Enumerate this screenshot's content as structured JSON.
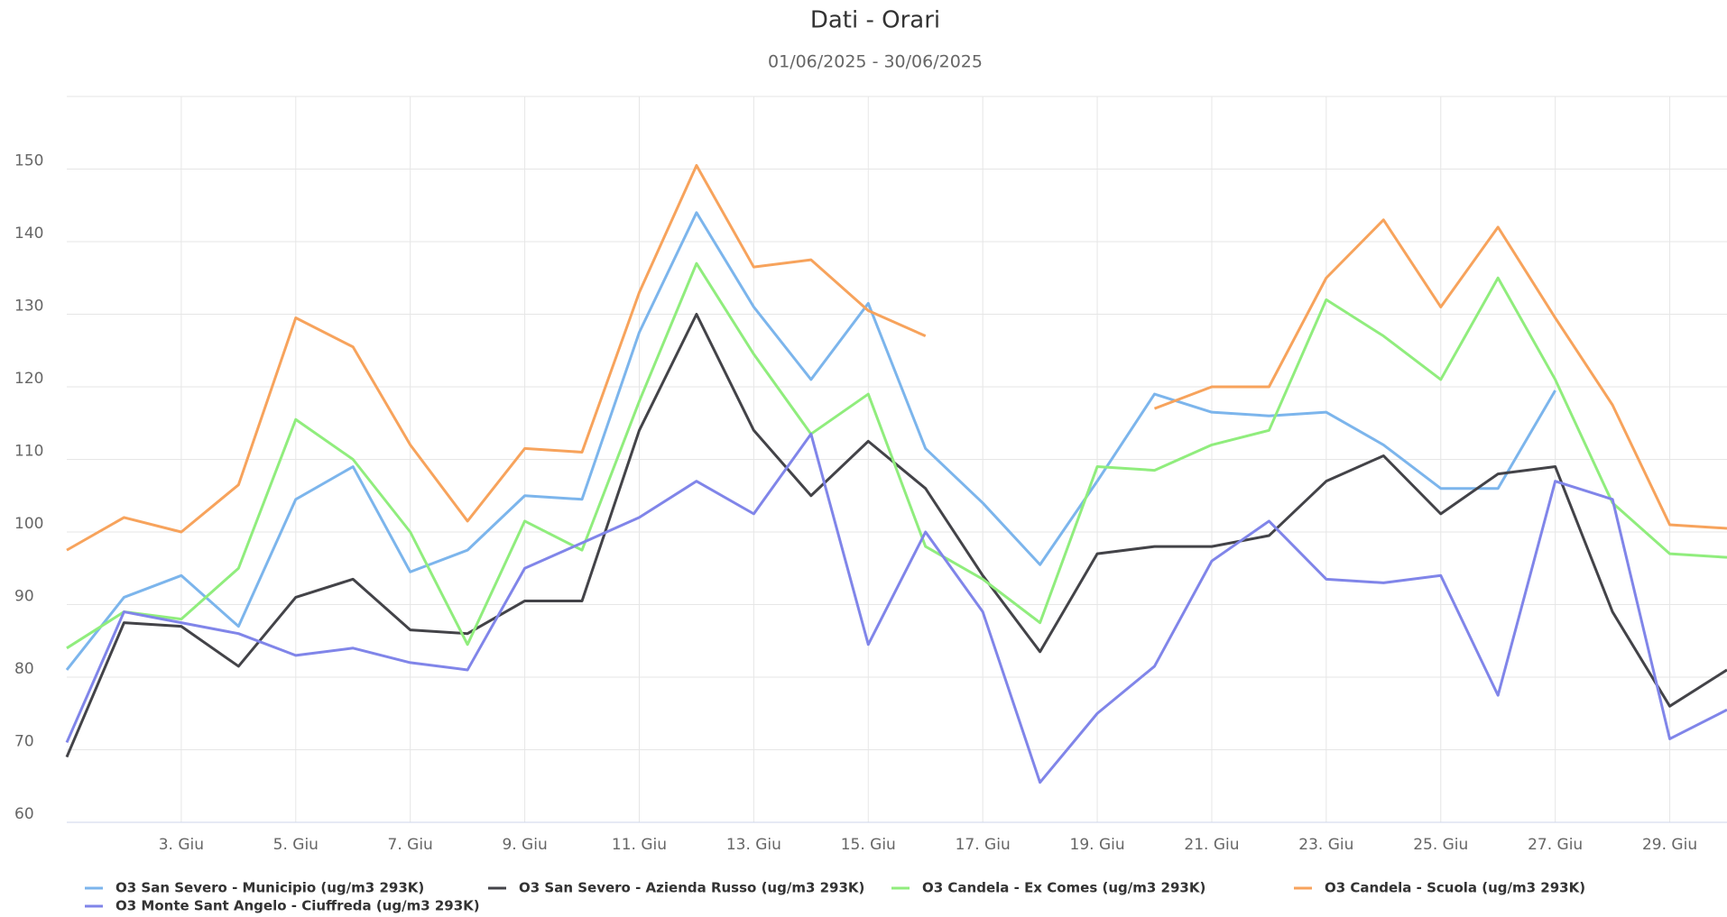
{
  "chart_data": {
    "type": "line",
    "title": "Dati - Orari",
    "subtitle": "01/06/2025 - 30/06/2025",
    "x": [
      1,
      2,
      3,
      4,
      5,
      6,
      7,
      8,
      9,
      10,
      11,
      12,
      13,
      14,
      15,
      16,
      17,
      18,
      19,
      20,
      21,
      22,
      23,
      24,
      25,
      26,
      27,
      28,
      29,
      30
    ],
    "xlim": [
      1,
      30
    ],
    "xticks": [
      {
        "value": 3,
        "label": "3. Giu"
      },
      {
        "value": 5,
        "label": "5. Giu"
      },
      {
        "value": 7,
        "label": "7. Giu"
      },
      {
        "value": 9,
        "label": "9. Giu"
      },
      {
        "value": 11,
        "label": "11. Giu"
      },
      {
        "value": 13,
        "label": "13. Giu"
      },
      {
        "value": 15,
        "label": "15. Giu"
      },
      {
        "value": 17,
        "label": "17. Giu"
      },
      {
        "value": 19,
        "label": "19. Giu"
      },
      {
        "value": 21,
        "label": "21. Giu"
      },
      {
        "value": 23,
        "label": "23. Giu"
      },
      {
        "value": 25,
        "label": "25. Giu"
      },
      {
        "value": 27,
        "label": "27. Giu"
      },
      {
        "value": 29,
        "label": "29. Giu"
      }
    ],
    "ylim": [
      60,
      160
    ],
    "yticks": [
      60,
      70,
      80,
      90,
      100,
      110,
      120,
      130,
      140,
      150
    ],
    "grid": true,
    "series": [
      {
        "name": "O3 San Severo - Municipio (ug/m3 293K)",
        "color": "#7cb5ec",
        "values": [
          81,
          91,
          94,
          87,
          104.5,
          109,
          94.5,
          97.5,
          105,
          104.5,
          127.5,
          144,
          131,
          121,
          131.5,
          111.5,
          104,
          95.5,
          107,
          119,
          116.5,
          116,
          116.5,
          112,
          106,
          106,
          119.5,
          null,
          null,
          null
        ]
      },
      {
        "name": "O3 San Severo - Azienda Russo (ug/m3 293K)",
        "color": "#434348",
        "values": [
          69,
          87.5,
          87,
          81.5,
          91,
          93.5,
          86.5,
          86,
          90.5,
          90.5,
          114,
          130,
          114,
          105,
          112.5,
          106,
          94,
          83.5,
          97,
          98,
          98,
          99.5,
          107,
          110.5,
          102.5,
          108,
          109,
          89,
          76,
          81
        ]
      },
      {
        "name": "O3 Candela - Ex Comes (ug/m3 293K)",
        "color": "#90ed7d",
        "values": [
          84,
          89,
          88,
          95,
          115.5,
          110,
          100,
          84.5,
          101.5,
          97.5,
          118,
          137,
          124.5,
          113.5,
          119,
          98,
          93.5,
          87.5,
          109,
          108.5,
          112,
          114,
          132,
          127,
          121,
          135,
          121,
          104,
          97,
          96.5
        ]
      },
      {
        "name": "O3 Candela - Scuola (ug/m3 293K)",
        "color": "#f7a35c",
        "values": [
          97.5,
          102,
          100,
          106.5,
          129.5,
          125.5,
          112,
          101.5,
          111.5,
          111,
          133,
          150.5,
          136.5,
          137.5,
          130.5,
          127,
          null,
          null,
          null,
          117,
          120,
          120,
          135,
          143,
          131,
          142,
          129.5,
          117.5,
          101,
          100.5
        ]
      },
      {
        "name": "O3 Monte Sant Angelo - Ciuffreda (ug/m3 293K)",
        "color": "#8085e9",
        "values": [
          71,
          89,
          87.5,
          86,
          83,
          84,
          82,
          81,
          95,
          98.5,
          102,
          107,
          102.5,
          113.5,
          84.5,
          100,
          89,
          65.5,
          75,
          81.5,
          96,
          101.5,
          93.5,
          93,
          94,
          77.5,
          107,
          104.5,
          71.5,
          75.5
        ]
      }
    ]
  }
}
